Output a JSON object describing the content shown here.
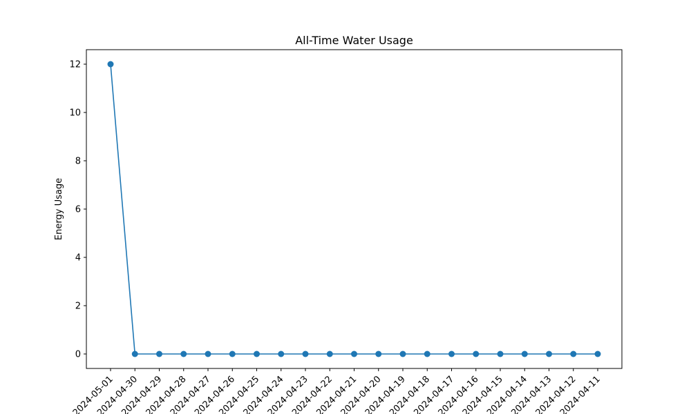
{
  "chart_data": {
    "type": "line",
    "title": "All-Time Water Usage",
    "xlabel": "",
    "ylabel": "Energy Usage",
    "x": [
      "2024-05-01",
      "2024-04-30",
      "2024-04-29",
      "2024-04-28",
      "2024-04-27",
      "2024-04-26",
      "2024-04-25",
      "2024-04-24",
      "2024-04-23",
      "2024-04-22",
      "2024-04-21",
      "2024-04-20",
      "2024-04-19",
      "2024-04-18",
      "2024-04-17",
      "2024-04-16",
      "2024-04-15",
      "2024-04-14",
      "2024-04-13",
      "2024-04-12",
      "2024-04-11"
    ],
    "series": [
      {
        "values": [
          12,
          0,
          0,
          0,
          0,
          0,
          0,
          0,
          0,
          0,
          0,
          0,
          0,
          0,
          0,
          0,
          0,
          0,
          0,
          0,
          0
        ]
      }
    ],
    "yticks": [
      0,
      2,
      4,
      6,
      8,
      10,
      12
    ],
    "ylim": [
      -0.6,
      12.6
    ],
    "grid": false,
    "marker": "circle",
    "color": "#1f77b4"
  }
}
